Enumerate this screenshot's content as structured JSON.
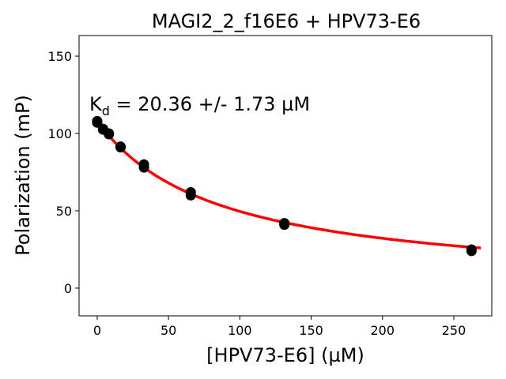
{
  "chart_data": {
    "type": "scatter",
    "title": "MAGI2_2_f16E6 + HPV73-E6",
    "xlabel": "[HPV73-E6] (µM)",
    "ylabel": "Polarization (mP)",
    "annotation": {
      "prefix": "K",
      "subscript": "d",
      "text": " = 20.36 +/- 1.73 µM"
    },
    "xlim": [
      -12.7,
      276.6
    ],
    "ylim": [
      -17.9,
      163.3
    ],
    "xticks": [
      0,
      50,
      100,
      150,
      200,
      250
    ],
    "yticks": [
      0,
      50,
      100,
      150
    ],
    "grid": false,
    "series": [
      {
        "name": "data",
        "color": "#000000",
        "x": [
          0,
          0,
          4.1,
          4.1,
          8.2,
          8.2,
          16.4,
          16.4,
          32.8,
          32.8,
          65.6,
          65.6,
          131.2,
          131.2,
          262.4,
          262.4
        ],
        "y": [
          108,
          107,
          103,
          102.5,
          100,
          99.5,
          91.5,
          91,
          80,
          78,
          62,
          60,
          42,
          41,
          25,
          24
        ]
      },
      {
        "name": "fit",
        "color": "#ff0000",
        "type": "line",
        "x_range": [
          0,
          269
        ],
        "model": {
          "A": 108,
          "K": 85
        }
      }
    ]
  }
}
